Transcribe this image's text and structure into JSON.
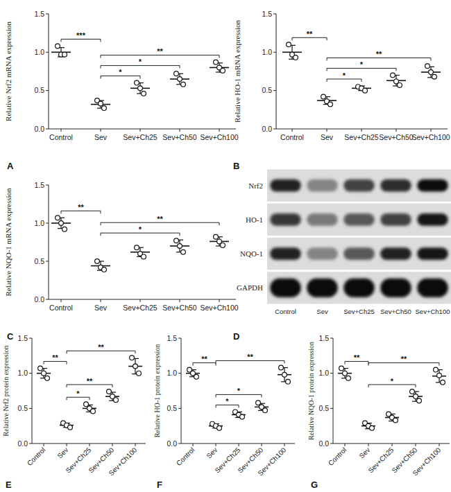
{
  "chart_data": [
    {
      "panel": "A",
      "type": "scatter",
      "marker": "circle",
      "y_label": "Relative Nrf2 mRNA expression",
      "categories": [
        "Control",
        "Sev",
        "Sev+Ch25",
        "Sev+Ch50",
        "Sev+Ch100"
      ],
      "points": [
        [
          1.08,
          0.97,
          0.97
        ],
        [
          0.37,
          0.33,
          0.27
        ],
        [
          0.6,
          0.53,
          0.46
        ],
        [
          0.72,
          0.65,
          0.58
        ],
        [
          0.87,
          0.8,
          0.76
        ]
      ],
      "values": [
        1.0,
        0.32,
        0.53,
        0.65,
        0.8
      ],
      "errors": [
        0.06,
        0.05,
        0.07,
        0.07,
        0.06
      ],
      "ylim": [
        0,
        1.5
      ],
      "yticks": [
        {
          "value": 0,
          "label": "0.0"
        },
        0.5,
        {
          "value": 1,
          "label": "1.0"
        },
        1.5
      ],
      "annotations": [
        {
          "from": "Control",
          "to": "Sev",
          "label": "***"
        },
        {
          "from": "Sev",
          "to": "Sev+Ch100",
          "label": "**"
        },
        {
          "from": "Sev",
          "to": "Sev+Ch25",
          "label": "*"
        },
        {
          "from": "Sev",
          "to": "Sev+Ch50",
          "label": "*"
        }
      ]
    },
    {
      "panel": "B",
      "type": "scatter",
      "marker": "circle",
      "y_label": "Relative HO-1 mRNA expression",
      "categories": [
        "Control",
        "Sev",
        "Sev+Ch25",
        "Sev+Ch50",
        "Sev+Ch100"
      ],
      "points": [
        [
          1.1,
          0.97,
          0.93
        ],
        [
          0.42,
          0.36,
          0.32
        ],
        [
          0.55,
          0.53,
          0.5
        ],
        [
          0.7,
          0.62,
          0.57
        ],
        [
          0.82,
          0.74,
          0.68
        ]
      ],
      "values": [
        1.0,
        0.37,
        0.53,
        0.63,
        0.74
      ],
      "errors": [
        0.09,
        0.05,
        0.03,
        0.07,
        0.07
      ],
      "ylim": [
        0,
        1.5
      ],
      "yticks": [
        {
          "value": 0,
          "label": "0.0"
        },
        0.5,
        {
          "value": 1,
          "label": "1.0"
        },
        1.5
      ],
      "annotations": [
        {
          "from": "Control",
          "to": "Sev",
          "label": "**"
        },
        {
          "from": "Sev",
          "to": "Sev+Ch100",
          "label": "**"
        },
        {
          "from": "Sev",
          "to": "Sev+Ch25",
          "label": "*"
        },
        {
          "from": "Sev",
          "to": "Sev+Ch50",
          "label": "*"
        }
      ]
    },
    {
      "panel": "C",
      "type": "scatter",
      "marker": "circle",
      "y_label": "Relative NQO-1 mRNA expression",
      "categories": [
        "Control",
        "Sev",
        "Sev+Ch25",
        "Sev+Ch50",
        "Sev+Ch100"
      ],
      "points": [
        [
          1.07,
          1.0,
          0.92
        ],
        [
          0.5,
          0.42,
          0.39
        ],
        [
          0.68,
          0.6,
          0.56
        ],
        [
          0.77,
          0.7,
          0.62
        ],
        [
          0.82,
          0.76,
          0.71
        ]
      ],
      "values": [
        1.0,
        0.44,
        0.62,
        0.7,
        0.76
      ],
      "errors": [
        0.07,
        0.06,
        0.06,
        0.08,
        0.06
      ],
      "ylim": [
        0,
        1.5
      ],
      "yticks": [
        {
          "value": 0,
          "label": "0.0"
        },
        0.5,
        {
          "value": 1,
          "label": "1.0"
        },
        1.5
      ],
      "annotations": [
        {
          "from": "Control",
          "to": "Sev",
          "label": "**"
        },
        {
          "from": "Sev",
          "to": "Sev+Ch100",
          "label": "**"
        },
        {
          "from": "Sev",
          "to": "Sev+Ch50",
          "label": "*"
        }
      ]
    },
    {
      "panel": "D",
      "type": "blot",
      "categories": [
        "Control",
        "Sev",
        "Sev+Ch25",
        "Sev+Ch50",
        "Sev+Ch100"
      ],
      "series": [
        {
          "name": "Nrf2",
          "values": [
            0.85,
            0.4,
            0.7,
            0.8,
            0.95
          ]
        },
        {
          "name": "HO-1",
          "values": [
            0.75,
            0.45,
            0.6,
            0.7,
            0.9
          ]
        },
        {
          "name": "NQO-1",
          "values": [
            0.85,
            0.4,
            0.6,
            0.85,
            0.9
          ]
        },
        {
          "name": "GAPDH",
          "values": [
            0.95,
            0.95,
            0.95,
            0.95,
            0.95
          ]
        }
      ]
    },
    {
      "panel": "E",
      "type": "scatter",
      "marker": "circle",
      "y_label": "Relative Nrf2 protein expression",
      "categories": [
        "Control",
        "Sev",
        "Sev+Ch25",
        "Sev+Ch50",
        "Sev+Ch100"
      ],
      "points": [
        [
          1.07,
          1.0,
          0.93
        ],
        [
          0.29,
          0.26,
          0.23
        ],
        [
          0.56,
          0.5,
          0.46
        ],
        [
          0.74,
          0.67,
          0.62
        ],
        [
          1.22,
          1.1,
          1.0
        ]
      ],
      "values": [
        1.0,
        0.26,
        0.5,
        0.67,
        1.1
      ],
      "errors": [
        0.07,
        0.03,
        0.05,
        0.06,
        0.11
      ],
      "ylim": [
        0,
        1.5
      ],
      "yticks": [
        {
          "value": 0,
          "label": "0.0"
        },
        0.5,
        {
          "value": 1,
          "label": "1.0"
        },
        1.5
      ],
      "annotations": [
        {
          "from": "Control",
          "to": "Sev",
          "label": "**"
        },
        {
          "from": "Sev",
          "to": "Sev+Ch100",
          "label": "**"
        },
        {
          "from": "Sev",
          "to": "Sev+Ch25",
          "label": "*"
        },
        {
          "from": "Sev",
          "to": "Sev+Ch50",
          "label": "**"
        }
      ]
    },
    {
      "panel": "F",
      "type": "scatter",
      "marker": "circle",
      "y_label": "Relative HO-1 protein expression",
      "categories": [
        "Control",
        "Sev",
        "Sev+Ch25",
        "Sev+Ch50",
        "Sev+Ch100"
      ],
      "points": [
        [
          1.05,
          1.0,
          0.95
        ],
        [
          0.28,
          0.25,
          0.22
        ],
        [
          0.45,
          0.41,
          0.38
        ],
        [
          0.58,
          0.52,
          0.47
        ],
        [
          1.08,
          0.98,
          0.88
        ]
      ],
      "values": [
        1.0,
        0.25,
        0.41,
        0.52,
        0.98
      ],
      "errors": [
        0.05,
        0.03,
        0.04,
        0.05,
        0.1
      ],
      "ylim": [
        0,
        1.5
      ],
      "yticks": [
        {
          "value": 0,
          "label": "0.0"
        },
        0.5,
        {
          "value": 1,
          "label": "1.0"
        },
        1.5
      ],
      "annotations": [
        {
          "from": "Control",
          "to": "Sev",
          "label": "**"
        },
        {
          "from": "Sev",
          "to": "Sev+Ch100",
          "label": "**"
        },
        {
          "from": "Sev",
          "to": "Sev+Ch25",
          "label": "*"
        },
        {
          "from": "Sev",
          "to": "Sev+Ch50",
          "label": "*"
        }
      ]
    },
    {
      "panel": "G",
      "type": "scatter",
      "marker": "circle",
      "y_label": "Relative NQO-1 protein expression",
      "categories": [
        "Control",
        "Sev",
        "Sev+Ch25",
        "Sev+Ch50",
        "Sev+Ch100"
      ],
      "points": [
        [
          1.07,
          1.0,
          0.93
        ],
        [
          0.29,
          0.25,
          0.22
        ],
        [
          0.42,
          0.37,
          0.33
        ],
        [
          0.74,
          0.67,
          0.61
        ],
        [
          1.05,
          0.97,
          0.87
        ]
      ],
      "values": [
        1.0,
        0.25,
        0.37,
        0.67,
        0.96
      ],
      "errors": [
        0.07,
        0.04,
        0.05,
        0.07,
        0.09
      ],
      "ylim": [
        0,
        1.5
      ],
      "yticks": [
        {
          "value": 0,
          "label": "0.0"
        },
        0.5,
        {
          "value": 1,
          "label": "1.0"
        },
        1.5
      ],
      "annotations": [
        {
          "from": "Control",
          "to": "Sev",
          "label": "**"
        },
        {
          "from": "Sev",
          "to": "Sev+Ch100",
          "label": "**"
        },
        {
          "from": "Sev",
          "to": "Sev+Ch50",
          "label": "*"
        }
      ]
    }
  ]
}
